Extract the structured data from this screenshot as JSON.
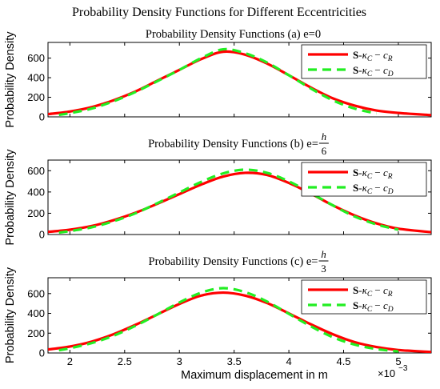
{
  "figure_title": "Probability Density Functions for Different Eccentricities",
  "colors": {
    "series_R": "#ff0000",
    "series_D": "#22ee22",
    "axes": "#000000"
  },
  "chart_data": [
    {
      "type": "line",
      "title": {
        "text": "Probability Density Functions (a) e=0",
        "frac_num": "",
        "frac_den": ""
      },
      "ylabel": "Probability Density",
      "xlabel": "",
      "xlim": [
        1.8,
        5.3
      ],
      "ylim": [
        0,
        760
      ],
      "x_scale": "×10^-3",
      "yticks": [
        0,
        200,
        400,
        600
      ],
      "xticks": [
        2,
        2.5,
        3,
        3.5,
        4,
        4.5,
        5
      ],
      "show_xtick_labels": false,
      "legend": "top-right",
      "series": [
        {
          "name": "S-κC − cR",
          "style": "solid",
          "color": "#ff0000",
          "x": [
            1.8,
            2.0,
            2.2,
            2.4,
            2.6,
            2.8,
            3.0,
            3.2,
            3.4,
            3.6,
            3.8,
            4.0,
            4.2,
            4.4,
            4.6,
            4.8,
            5.0,
            5.3
          ],
          "y": [
            28,
            55,
            100,
            170,
            260,
            370,
            480,
            590,
            665,
            635,
            545,
            425,
            300,
            190,
            115,
            65,
            40,
            18
          ]
        },
        {
          "name": "S-κC − cD",
          "style": "dashed",
          "color": "#22ee22",
          "x": [
            1.9,
            2.0,
            2.2,
            2.4,
            2.6,
            2.8,
            3.0,
            3.2,
            3.4,
            3.6,
            3.8,
            4.0,
            4.2,
            4.4,
            4.6,
            4.8
          ],
          "y": [
            20,
            38,
            85,
            160,
            255,
            365,
            480,
            600,
            690,
            650,
            555,
            425,
            290,
            170,
            85,
            35
          ]
        }
      ]
    },
    {
      "type": "line",
      "title": {
        "text": "Probability Density Functions (b) e=",
        "frac_num": "h",
        "frac_den": "6"
      },
      "ylabel": "Probability Density",
      "xlabel": "",
      "xlim": [
        1.8,
        5.3
      ],
      "ylim": [
        0,
        700
      ],
      "x_scale": "×10^-3",
      "yticks": [
        0,
        200,
        400,
        600
      ],
      "xticks": [
        2,
        2.5,
        3,
        3.5,
        4,
        4.5,
        5
      ],
      "show_xtick_labels": false,
      "legend": "top-right",
      "series": [
        {
          "name": "S-κC − cR",
          "style": "solid",
          "color": "#ff0000",
          "x": [
            1.8,
            2.0,
            2.2,
            2.4,
            2.6,
            2.8,
            3.0,
            3.2,
            3.4,
            3.6,
            3.8,
            4.0,
            4.2,
            4.4,
            4.6,
            4.8,
            5.0,
            5.3
          ],
          "y": [
            25,
            45,
            80,
            135,
            205,
            290,
            380,
            470,
            545,
            580,
            560,
            485,
            385,
            275,
            180,
            105,
            55,
            22
          ]
        },
        {
          "name": "S-κC − cD",
          "style": "dashed",
          "color": "#22ee22",
          "x": [
            1.9,
            2.0,
            2.2,
            2.4,
            2.6,
            2.8,
            3.0,
            3.2,
            3.4,
            3.6,
            3.8,
            4.0,
            4.2,
            4.4,
            4.6,
            4.8,
            5.0
          ],
          "y": [
            18,
            32,
            68,
            125,
            200,
            295,
            395,
            495,
            575,
            610,
            580,
            500,
            390,
            275,
            170,
            95,
            45
          ]
        }
      ]
    },
    {
      "type": "line",
      "title": {
        "text": "Probability Density Functions (c) e=",
        "frac_num": "h",
        "frac_den": "3"
      },
      "ylabel": "Probability Density",
      "xlabel": "Maximum displacement in m",
      "xlim": [
        1.8,
        5.3
      ],
      "ylim": [
        0,
        760
      ],
      "x_scale": "×10^-3",
      "yticks": [
        0,
        200,
        400,
        600
      ],
      "xticks": [
        2,
        2.5,
        3,
        3.5,
        4,
        4.5,
        5
      ],
      "show_xtick_labels": true,
      "legend": "top-right",
      "series": [
        {
          "name": "S-κC − cR",
          "style": "solid",
          "color": "#ff0000",
          "x": [
            1.8,
            2.0,
            2.2,
            2.4,
            2.6,
            2.8,
            3.0,
            3.2,
            3.4,
            3.6,
            3.8,
            4.0,
            4.2,
            4.4,
            4.6,
            4.8,
            5.0,
            5.3
          ],
          "y": [
            35,
            65,
            115,
            190,
            285,
            390,
            495,
            580,
            610,
            580,
            505,
            400,
            290,
            190,
            110,
            60,
            30,
            10
          ]
        },
        {
          "name": "S-κC − cD",
          "style": "dashed",
          "color": "#22ee22",
          "x": [
            1.9,
            2.0,
            2.2,
            2.4,
            2.6,
            2.8,
            3.0,
            3.2,
            3.4,
            3.6,
            3.8,
            4.0,
            4.2,
            4.4,
            4.6,
            4.8,
            5.0
          ],
          "y": [
            28,
            48,
            100,
            175,
            275,
            390,
            510,
            610,
            655,
            615,
            520,
            395,
            270,
            160,
            85,
            40,
            15
          ]
        }
      ]
    }
  ]
}
